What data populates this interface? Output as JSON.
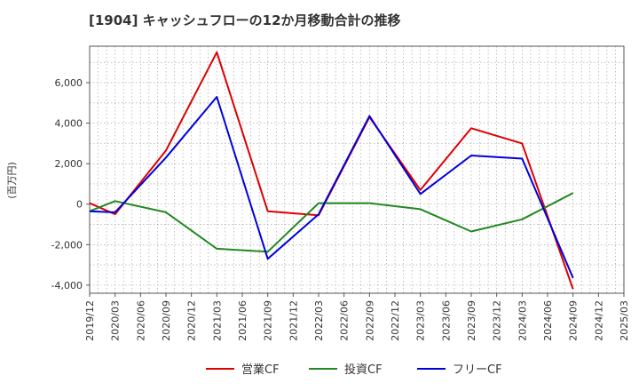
{
  "chart_data": {
    "type": "line",
    "title": "[1904]  キャッシュフローの12か月移動合計の推移",
    "ylabel": "(百万円)",
    "xlabel": "",
    "ylim": [
      -4400,
      7800
    ],
    "yticks": [
      -4000,
      -2000,
      0,
      2000,
      4000,
      6000
    ],
    "ytick_labels": [
      "-4,000",
      "-2,000",
      "0",
      "2,000",
      "4,000",
      "6,000"
    ],
    "x_tick_labels": [
      "2019/12",
      "2020/03",
      "2020/06",
      "2020/09",
      "2020/12",
      "2021/03",
      "2021/06",
      "2021/09",
      "2021/12",
      "2022/03",
      "2022/06",
      "2022/09",
      "2022/12",
      "2023/03",
      "2023/06",
      "2023/09",
      "2023/12",
      "2024/03",
      "2024/06",
      "2024/09",
      "2024/12",
      "2025/03"
    ],
    "grid": true,
    "legend_position": "bottom",
    "series": [
      {
        "name": "営業CF",
        "color": "#dd0000",
        "points": [
          {
            "x": "2019/12",
            "y": 50
          },
          {
            "x": "2020/03",
            "y": -500
          },
          {
            "x": "2020/09",
            "y": 2650
          },
          {
            "x": "2021/03",
            "y": 7500
          },
          {
            "x": "2021/09",
            "y": -350
          },
          {
            "x": "2022/03",
            "y": -550
          },
          {
            "x": "2022/09",
            "y": 4300
          },
          {
            "x": "2023/03",
            "y": 700
          },
          {
            "x": "2023/09",
            "y": 3750
          },
          {
            "x": "2024/03",
            "y": 3000
          },
          {
            "x": "2024/09",
            "y": -4200
          }
        ]
      },
      {
        "name": "投資CF",
        "color": "#228822",
        "points": [
          {
            "x": "2019/12",
            "y": -350
          },
          {
            "x": "2020/03",
            "y": 150
          },
          {
            "x": "2020/09",
            "y": -400
          },
          {
            "x": "2021/03",
            "y": -2200
          },
          {
            "x": "2021/09",
            "y": -2350
          },
          {
            "x": "2022/03",
            "y": 50
          },
          {
            "x": "2022/09",
            "y": 50
          },
          {
            "x": "2023/03",
            "y": -250
          },
          {
            "x": "2023/09",
            "y": -1350
          },
          {
            "x": "2024/03",
            "y": -750
          },
          {
            "x": "2024/09",
            "y": 550
          }
        ]
      },
      {
        "name": "フリーCF",
        "color": "#0000dd",
        "points": [
          {
            "x": "2019/12",
            "y": -350
          },
          {
            "x": "2020/03",
            "y": -400
          },
          {
            "x": "2020/09",
            "y": 2300
          },
          {
            "x": "2021/03",
            "y": 5300
          },
          {
            "x": "2021/09",
            "y": -2700
          },
          {
            "x": "2022/03",
            "y": -500
          },
          {
            "x": "2022/09",
            "y": 4350
          },
          {
            "x": "2023/03",
            "y": 500
          },
          {
            "x": "2023/09",
            "y": 2400
          },
          {
            "x": "2024/03",
            "y": 2250
          },
          {
            "x": "2024/09",
            "y": -3650
          }
        ]
      }
    ]
  }
}
